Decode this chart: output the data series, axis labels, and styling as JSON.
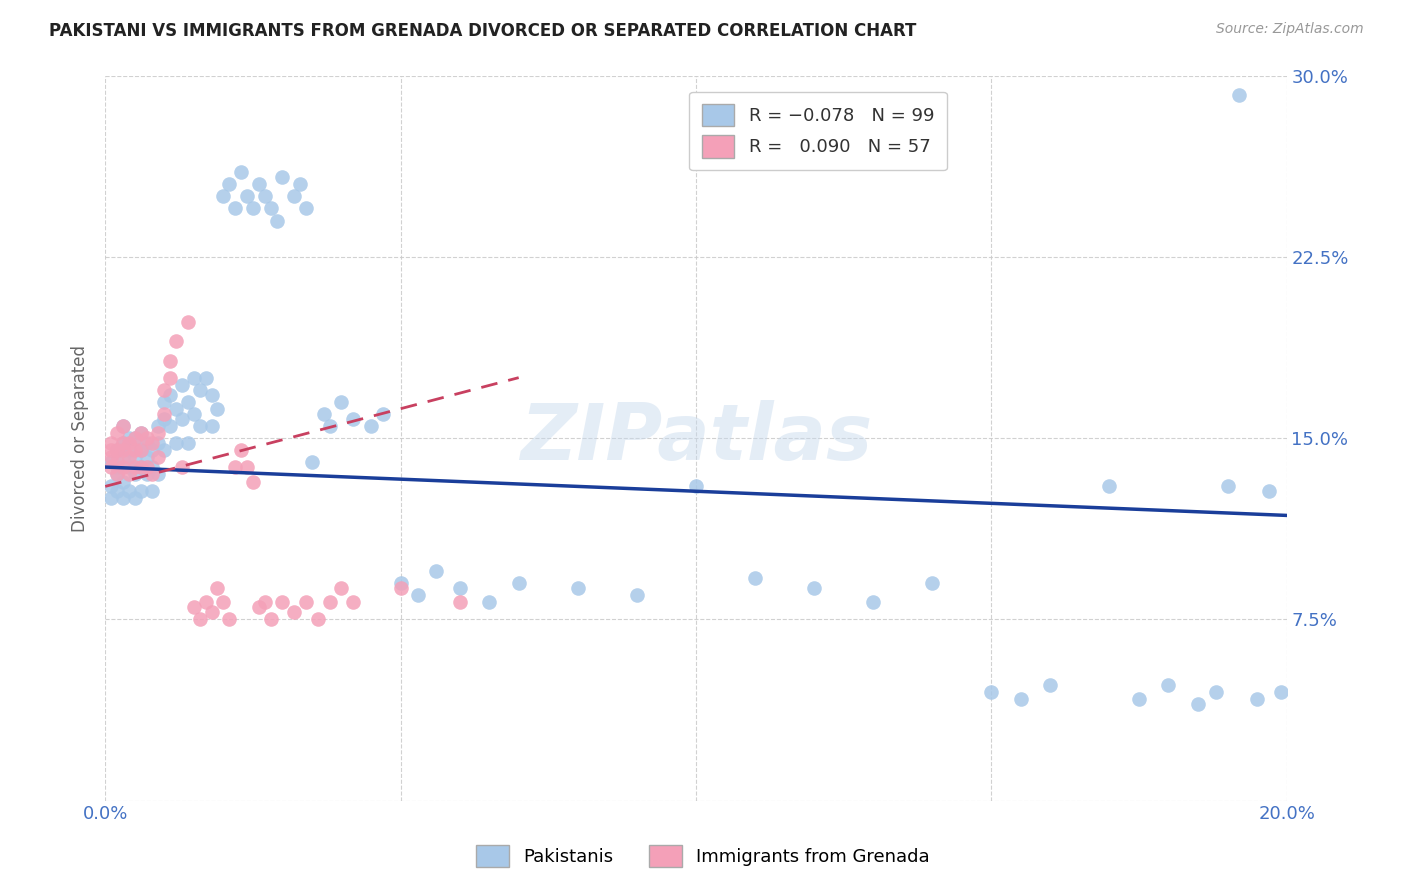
{
  "title": "PAKISTANI VS IMMIGRANTS FROM GRENADA DIVORCED OR SEPARATED CORRELATION CHART",
  "source": "Source: ZipAtlas.com",
  "ylabel": "Divorced or Separated",
  "x_min": 0.0,
  "x_max": 0.2,
  "y_min": 0.0,
  "y_max": 0.3,
  "x_ticks": [
    0.0,
    0.05,
    0.1,
    0.15,
    0.2
  ],
  "y_ticks": [
    0.0,
    0.075,
    0.15,
    0.225,
    0.3
  ],
  "blue_R": "-0.078",
  "blue_N": "99",
  "pink_R": "0.090",
  "pink_N": "57",
  "blue_color": "#a8c8e8",
  "pink_color": "#f4a0b8",
  "blue_line_color": "#1a3e9a",
  "pink_line_color": "#c84060",
  "watermark": "ZIPatlas",
  "legend_label_blue": "Pakistanis",
  "legend_label_pink": "Immigrants from Grenada",
  "blue_line_x0": 0.0,
  "blue_line_y0": 0.138,
  "blue_line_x1": 0.2,
  "blue_line_y1": 0.118,
  "pink_line_x0": 0.0,
  "pink_line_y0": 0.13,
  "pink_line_x1": 0.07,
  "pink_line_y1": 0.175,
  "blue_scatter_x": [
    0.001,
    0.001,
    0.001,
    0.002,
    0.002,
    0.002,
    0.002,
    0.003,
    0.003,
    0.003,
    0.003,
    0.003,
    0.004,
    0.004,
    0.004,
    0.004,
    0.005,
    0.005,
    0.005,
    0.005,
    0.006,
    0.006,
    0.006,
    0.006,
    0.007,
    0.007,
    0.007,
    0.008,
    0.008,
    0.008,
    0.009,
    0.009,
    0.009,
    0.01,
    0.01,
    0.01,
    0.011,
    0.011,
    0.012,
    0.012,
    0.013,
    0.013,
    0.014,
    0.014,
    0.015,
    0.015,
    0.016,
    0.016,
    0.017,
    0.018,
    0.018,
    0.019,
    0.02,
    0.021,
    0.022,
    0.023,
    0.024,
    0.025,
    0.026,
    0.027,
    0.028,
    0.029,
    0.03,
    0.032,
    0.033,
    0.034,
    0.035,
    0.037,
    0.038,
    0.04,
    0.042,
    0.045,
    0.047,
    0.05,
    0.053,
    0.056,
    0.06,
    0.065,
    0.07,
    0.08,
    0.09,
    0.1,
    0.11,
    0.12,
    0.13,
    0.14,
    0.15,
    0.155,
    0.16,
    0.17,
    0.175,
    0.18,
    0.185,
    0.188,
    0.19,
    0.192,
    0.195,
    0.197,
    0.199
  ],
  "blue_scatter_y": [
    0.14,
    0.13,
    0.125,
    0.145,
    0.135,
    0.128,
    0.138,
    0.142,
    0.132,
    0.148,
    0.125,
    0.155,
    0.138,
    0.128,
    0.145,
    0.15,
    0.135,
    0.142,
    0.125,
    0.15,
    0.138,
    0.145,
    0.128,
    0.152,
    0.135,
    0.142,
    0.148,
    0.138,
    0.128,
    0.145,
    0.155,
    0.135,
    0.148,
    0.165,
    0.158,
    0.145,
    0.168,
    0.155,
    0.162,
    0.148,
    0.172,
    0.158,
    0.165,
    0.148,
    0.175,
    0.16,
    0.17,
    0.155,
    0.175,
    0.168,
    0.155,
    0.162,
    0.25,
    0.255,
    0.245,
    0.26,
    0.25,
    0.245,
    0.255,
    0.25,
    0.245,
    0.24,
    0.258,
    0.25,
    0.255,
    0.245,
    0.14,
    0.16,
    0.155,
    0.165,
    0.158,
    0.155,
    0.16,
    0.09,
    0.085,
    0.095,
    0.088,
    0.082,
    0.09,
    0.088,
    0.085,
    0.13,
    0.092,
    0.088,
    0.082,
    0.09,
    0.045,
    0.042,
    0.048,
    0.13,
    0.042,
    0.048,
    0.04,
    0.045,
    0.13,
    0.292,
    0.042,
    0.128,
    0.045
  ],
  "pink_scatter_x": [
    0.001,
    0.001,
    0.001,
    0.001,
    0.002,
    0.002,
    0.002,
    0.002,
    0.003,
    0.003,
    0.003,
    0.003,
    0.004,
    0.004,
    0.004,
    0.005,
    0.005,
    0.005,
    0.006,
    0.006,
    0.006,
    0.007,
    0.007,
    0.008,
    0.008,
    0.009,
    0.009,
    0.01,
    0.01,
    0.011,
    0.011,
    0.012,
    0.013,
    0.014,
    0.015,
    0.016,
    0.017,
    0.018,
    0.019,
    0.02,
    0.021,
    0.022,
    0.023,
    0.024,
    0.025,
    0.026,
    0.027,
    0.028,
    0.03,
    0.032,
    0.034,
    0.036,
    0.038,
    0.04,
    0.042,
    0.05,
    0.06
  ],
  "pink_scatter_y": [
    0.148,
    0.142,
    0.138,
    0.145,
    0.152,
    0.14,
    0.145,
    0.135,
    0.148,
    0.138,
    0.145,
    0.155,
    0.142,
    0.148,
    0.135,
    0.15,
    0.138,
    0.145,
    0.152,
    0.138,
    0.145,
    0.15,
    0.138,
    0.148,
    0.135,
    0.152,
    0.142,
    0.16,
    0.17,
    0.175,
    0.182,
    0.19,
    0.138,
    0.198,
    0.08,
    0.075,
    0.082,
    0.078,
    0.088,
    0.082,
    0.075,
    0.138,
    0.145,
    0.138,
    0.132,
    0.08,
    0.082,
    0.075,
    0.082,
    0.078,
    0.082,
    0.075,
    0.082,
    0.088,
    0.082,
    0.088,
    0.082
  ]
}
